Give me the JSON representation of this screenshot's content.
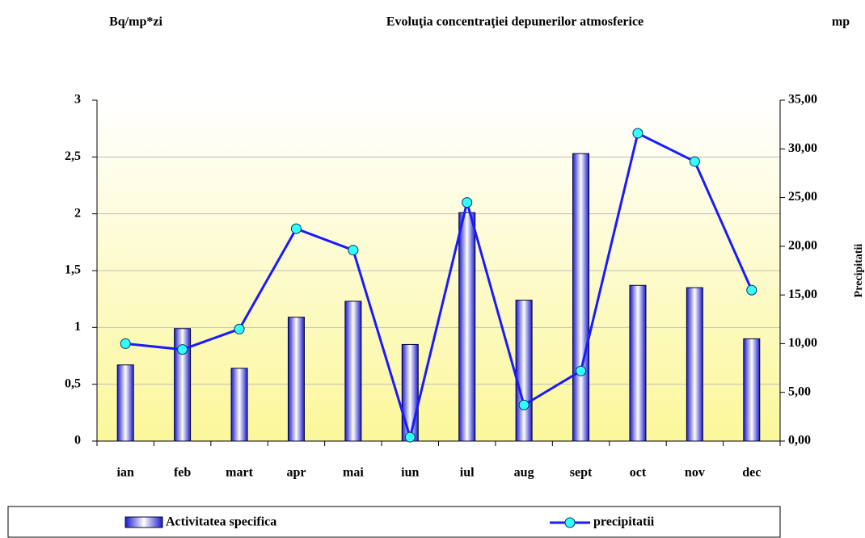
{
  "chart_data": {
    "type": "bar",
    "title": "Evoluţia concentraţiei depunerilor atmosferice",
    "y_label": "Bq/mp*zi",
    "y2_unit_label": "mp",
    "y2_label": "Precipitatii",
    "categories": [
      "ian",
      "feb",
      "mart",
      "apr",
      "mai",
      "iun",
      "iul",
      "aug",
      "sept",
      "oct",
      "nov",
      "dec"
    ],
    "series": [
      {
        "name": "Activitatea specifica",
        "type": "bar",
        "color": "#1a1acc",
        "values": [
          0.67,
          0.99,
          0.64,
          1.09,
          1.23,
          0.85,
          2.01,
          1.24,
          2.53,
          1.37,
          1.35,
          0.9
        ]
      },
      {
        "name": "precipitatii",
        "type": "line",
        "axis": "y2",
        "color": "#1a1aff",
        "marker_color": "#33ffff",
        "values": [
          10.0,
          9.4,
          11.5,
          21.8,
          19.6,
          0.4,
          24.5,
          3.7,
          7.2,
          31.6,
          28.7,
          15.5
        ]
      }
    ],
    "ylim": [
      0,
      3
    ],
    "yticks": [
      0,
      {
        "value": 0.5,
        "label": "0,5"
      },
      1,
      {
        "value": 1.5,
        "label": "1,5"
      },
      2,
      {
        "value": 2.5,
        "label": "2,5"
      },
      3
    ],
    "y2lim": [
      0,
      35
    ],
    "y2ticks": [
      {
        "value": 0,
        "label": "0,00"
      },
      {
        "value": 5,
        "label": "5,00"
      },
      {
        "value": 10,
        "label": "10,00"
      },
      {
        "value": 15,
        "label": "15,00"
      },
      {
        "value": 20,
        "label": "20,00"
      },
      {
        "value": 25,
        "label": "25,00"
      },
      {
        "value": 30,
        "label": "30,00"
      },
      {
        "value": 35,
        "label": "35,00"
      }
    ],
    "grid": true,
    "legend": "bottom"
  }
}
